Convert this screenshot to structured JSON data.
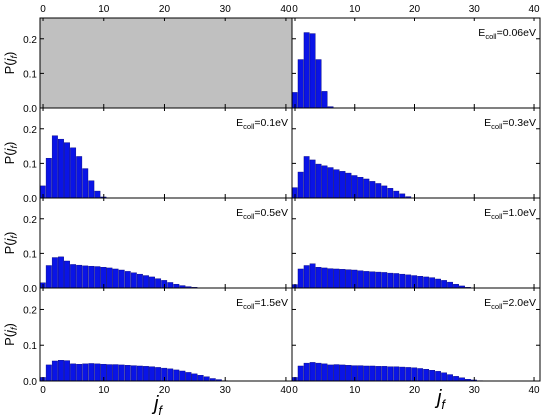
{
  "figure": {
    "x_axis_title_main": "j",
    "x_axis_title_sub": "f",
    "y_axis_title_main": "P(",
    "y_axis_title_var": "j",
    "y_axis_title_sub": "f",
    "y_axis_title_close": ")",
    "top_x_ticks": [
      "0",
      "10",
      "20",
      "30",
      "40"
    ]
  },
  "chart_data": [
    {
      "type": "bar",
      "panel": "top-left",
      "shaded": true,
      "shade_color": "#c0c0c0",
      "label": "",
      "x": [],
      "values": [],
      "xlim": [
        -0.5,
        41
      ],
      "ylim": [
        0,
        0.26
      ],
      "yticks": [
        "0.0",
        "0.1",
        "0.2"
      ],
      "show_ylabel": true,
      "xticks": []
    },
    {
      "type": "bar",
      "panel": "top-right",
      "label_main": "E",
      "label_sub": "coll",
      "label_value": "=0.06eV",
      "bar_color": "#0a14e6",
      "x": [
        0,
        1,
        2,
        3,
        4,
        5,
        6
      ],
      "values": [
        0.045,
        0.14,
        0.218,
        0.215,
        0.14,
        0.048,
        0.004
      ],
      "xlim": [
        -0.5,
        41
      ],
      "ylim": [
        0,
        0.26
      ],
      "yticks": [
        "0.0",
        "0.1",
        "0.2"
      ],
      "show_ylabel": false,
      "xticks": []
    },
    {
      "type": "bar",
      "panel": "row2-left",
      "label_main": "E",
      "label_sub": "coll",
      "label_value": "=0.1eV",
      "bar_color": "#0a14e6",
      "x": [
        0,
        1,
        2,
        3,
        4,
        5,
        6,
        7,
        8,
        9,
        10
      ],
      "values": [
        0.035,
        0.115,
        0.18,
        0.17,
        0.16,
        0.145,
        0.12,
        0.085,
        0.05,
        0.02,
        0.003
      ],
      "xlim": [
        -0.5,
        41
      ],
      "ylim": [
        0,
        0.26
      ],
      "yticks": [
        "0.0",
        "0.1",
        "0.2"
      ],
      "show_ylabel": true,
      "xticks": []
    },
    {
      "type": "bar",
      "panel": "row2-right",
      "label_main": "E",
      "label_sub": "coll",
      "label_value": "=0.3eV",
      "bar_color": "#0a14e6",
      "x": [
        0,
        1,
        2,
        3,
        4,
        5,
        6,
        7,
        8,
        9,
        10,
        11,
        12,
        13,
        14,
        15,
        16,
        17,
        18,
        19
      ],
      "values": [
        0.03,
        0.075,
        0.12,
        0.11,
        0.098,
        0.093,
        0.088,
        0.082,
        0.077,
        0.072,
        0.065,
        0.06,
        0.055,
        0.048,
        0.042,
        0.035,
        0.028,
        0.02,
        0.012,
        0.004
      ],
      "xlim": [
        -0.5,
        41
      ],
      "ylim": [
        0,
        0.26
      ],
      "yticks": [
        "0.0",
        "0.1",
        "0.2"
      ],
      "show_ylabel": false,
      "xticks": []
    },
    {
      "type": "bar",
      "panel": "row3-left",
      "label_main": "E",
      "label_sub": "coll",
      "label_value": "=0.5eV",
      "bar_color": "#0a14e6",
      "x": [
        0,
        1,
        2,
        3,
        4,
        5,
        6,
        7,
        8,
        9,
        10,
        11,
        12,
        13,
        14,
        15,
        16,
        17,
        18,
        19,
        20,
        21,
        22,
        23,
        24,
        25
      ],
      "values": [
        0.015,
        0.065,
        0.088,
        0.09,
        0.078,
        0.068,
        0.066,
        0.064,
        0.063,
        0.062,
        0.06,
        0.058,
        0.055,
        0.052,
        0.048,
        0.044,
        0.04,
        0.036,
        0.032,
        0.027,
        0.022,
        0.016,
        0.011,
        0.007,
        0.004,
        0.002
      ],
      "xlim": [
        -0.5,
        41
      ],
      "ylim": [
        0,
        0.26
      ],
      "yticks": [
        "0.0",
        "0.1",
        "0.2"
      ],
      "show_ylabel": true,
      "xticks": []
    },
    {
      "type": "bar",
      "panel": "row3-right",
      "label_main": "E",
      "label_sub": "coll",
      "label_value": "=1.0eV",
      "bar_color": "#0a14e6",
      "x": [
        0,
        1,
        2,
        3,
        4,
        5,
        6,
        7,
        8,
        9,
        10,
        11,
        12,
        13,
        14,
        15,
        16,
        17,
        18,
        19,
        20,
        21,
        22,
        23,
        24,
        25,
        26,
        27,
        28,
        29
      ],
      "values": [
        0.01,
        0.055,
        0.065,
        0.07,
        0.06,
        0.058,
        0.056,
        0.055,
        0.054,
        0.053,
        0.052,
        0.05,
        0.048,
        0.047,
        0.046,
        0.045,
        0.043,
        0.042,
        0.04,
        0.038,
        0.036,
        0.034,
        0.032,
        0.03,
        0.026,
        0.022,
        0.017,
        0.011,
        0.006,
        0.002
      ],
      "xlim": [
        -0.5,
        41
      ],
      "ylim": [
        0,
        0.26
      ],
      "yticks": [
        "0.0",
        "0.1",
        "0.2"
      ],
      "show_ylabel": false,
      "xticks": []
    },
    {
      "type": "bar",
      "panel": "row4-left",
      "label_main": "E",
      "label_sub": "coll",
      "label_value": "=1.5eV",
      "bar_color": "#0a14e6",
      "x": [
        0,
        1,
        2,
        3,
        4,
        5,
        6,
        7,
        8,
        9,
        10,
        11,
        12,
        13,
        14,
        15,
        16,
        17,
        18,
        19,
        20,
        21,
        22,
        23,
        24,
        25,
        26,
        27,
        28,
        29,
        30
      ],
      "values": [
        0.01,
        0.045,
        0.056,
        0.058,
        0.057,
        0.048,
        0.047,
        0.048,
        0.049,
        0.048,
        0.047,
        0.046,
        0.046,
        0.045,
        0.044,
        0.043,
        0.042,
        0.041,
        0.04,
        0.038,
        0.036,
        0.034,
        0.031,
        0.028,
        0.024,
        0.02,
        0.016,
        0.012,
        0.007,
        0.004,
        0.001
      ],
      "xlim": [
        -0.5,
        41
      ],
      "ylim": [
        0,
        0.26
      ],
      "yticks": [
        "0.0",
        "0.1",
        "0.2"
      ],
      "show_ylabel": true,
      "xticks": [
        "0",
        "10",
        "20",
        "30",
        "40"
      ]
    },
    {
      "type": "bar",
      "panel": "row4-right",
      "label_main": "E",
      "label_sub": "coll",
      "label_value": "=2.0eV",
      "bar_color": "#0a14e6",
      "x": [
        0,
        1,
        2,
        3,
        4,
        5,
        6,
        7,
        8,
        9,
        10,
        11,
        12,
        13,
        14,
        15,
        16,
        17,
        18,
        19,
        20,
        21,
        22,
        23,
        24,
        25,
        26,
        27,
        28,
        29,
        30,
        31
      ],
      "values": [
        0.01,
        0.042,
        0.05,
        0.052,
        0.05,
        0.048,
        0.045,
        0.046,
        0.045,
        0.044,
        0.043,
        0.043,
        0.042,
        0.042,
        0.041,
        0.041,
        0.04,
        0.04,
        0.039,
        0.038,
        0.037,
        0.035,
        0.033,
        0.03,
        0.027,
        0.023,
        0.018,
        0.013,
        0.009,
        0.005,
        0.003,
        0.001
      ],
      "xlim": [
        -0.5,
        41
      ],
      "ylim": [
        0,
        0.26
      ],
      "yticks": [
        "0.0",
        "0.1",
        "0.2"
      ],
      "show_ylabel": false,
      "xticks": [
        "0",
        "10",
        "20",
        "30",
        "40"
      ]
    }
  ]
}
